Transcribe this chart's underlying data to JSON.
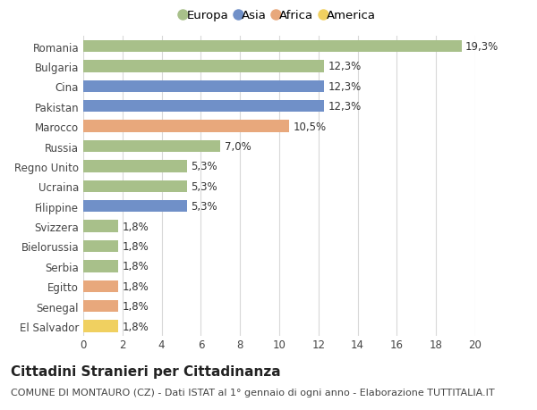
{
  "categories": [
    "Romania",
    "Bulgaria",
    "Cina",
    "Pakistan",
    "Marocco",
    "Russia",
    "Regno Unito",
    "Ucraina",
    "Filippine",
    "Svizzera",
    "Bielorussia",
    "Serbia",
    "Egitto",
    "Senegal",
    "El Salvador"
  ],
  "values": [
    19.3,
    12.3,
    12.3,
    12.3,
    10.5,
    7.0,
    5.3,
    5.3,
    5.3,
    1.8,
    1.8,
    1.8,
    1.8,
    1.8,
    1.8
  ],
  "labels": [
    "19,3%",
    "12,3%",
    "12,3%",
    "12,3%",
    "10,5%",
    "7,0%",
    "5,3%",
    "5,3%",
    "5,3%",
    "1,8%",
    "1,8%",
    "1,8%",
    "1,8%",
    "1,8%",
    "1,8%"
  ],
  "continents": [
    "Europa",
    "Europa",
    "Asia",
    "Asia",
    "Africa",
    "Europa",
    "Europa",
    "Europa",
    "Asia",
    "Europa",
    "Europa",
    "Europa",
    "Africa",
    "Africa",
    "America"
  ],
  "continent_colors": {
    "Europa": "#a8c08a",
    "Asia": "#7090c8",
    "Africa": "#e8a87c",
    "America": "#f0d060"
  },
  "legend_order": [
    "Europa",
    "Asia",
    "Africa",
    "America"
  ],
  "title": "Cittadini Stranieri per Cittadinanza",
  "subtitle": "COMUNE DI MONTAURO (CZ) - Dati ISTAT al 1° gennaio di ogni anno - Elaborazione TUTTITALIA.IT",
  "xlim": [
    0,
    20
  ],
  "xticks": [
    0,
    2,
    4,
    6,
    8,
    10,
    12,
    14,
    16,
    18,
    20
  ],
  "background_color": "#ffffff",
  "grid_color": "#d8d8d8",
  "bar_height": 0.6,
  "label_fontsize": 8.5,
  "tick_fontsize": 8.5,
  "title_fontsize": 11,
  "subtitle_fontsize": 8
}
